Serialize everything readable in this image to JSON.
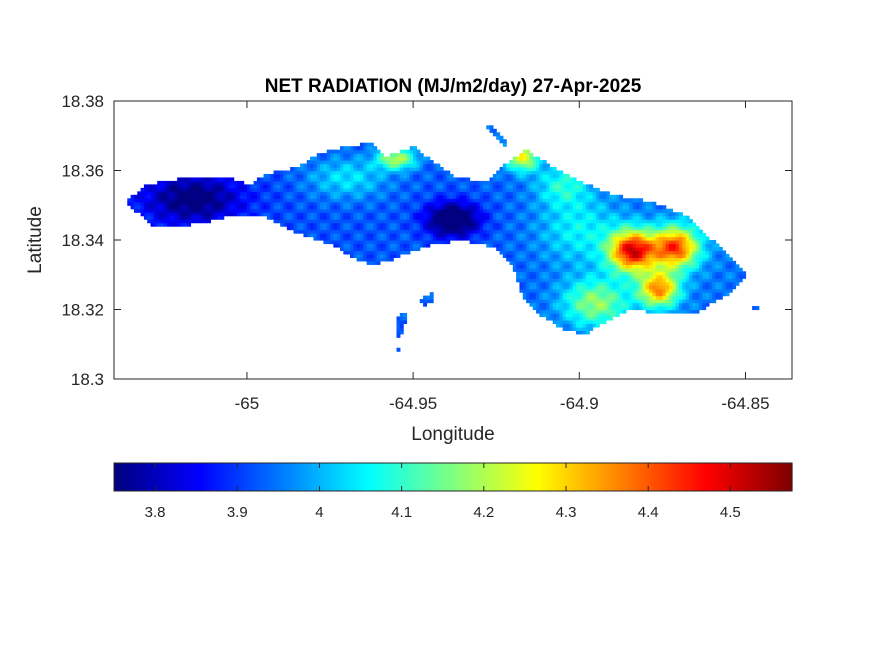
{
  "chart_data": {
    "type": "heatmap",
    "title": "NET RADIATION (MJ/m2/day) 27-Apr-2025",
    "xlabel": "Longitude",
    "ylabel": "Latitude",
    "xlim": [
      -65.04,
      -64.836
    ],
    "ylim": [
      18.3,
      18.38
    ],
    "xticks": [
      -65,
      -64.95,
      -64.9,
      -64.85
    ],
    "xtick_labels": [
      "-65",
      "-64.95",
      "-64.9",
      "-64.85"
    ],
    "yticks": [
      18.3,
      18.32,
      18.34,
      18.36,
      18.38
    ],
    "ytick_labels": [
      "18.3",
      "18.32",
      "18.34",
      "18.36",
      "18.38"
    ],
    "grid": false,
    "colormap": "jet",
    "colorbar": {
      "orientation": "horizontal",
      "placement": "bottom",
      "clim": [
        3.75,
        4.575
      ],
      "ticks": [
        3.8,
        3.9,
        4.0,
        4.1,
        4.2,
        4.3,
        4.4,
        4.5
      ],
      "tick_labels": [
        "3.8",
        "3.9",
        "4",
        "4.1",
        "4.2",
        "4.3",
        "4.4",
        "4.5"
      ]
    },
    "island_outline": [
      [
        -65.037,
        18.351
      ],
      [
        -65.03,
        18.356
      ],
      [
        -65.018,
        18.358
      ],
      [
        -65.005,
        18.358
      ],
      [
        -64.999,
        18.356
      ],
      [
        -64.994,
        18.359
      ],
      [
        -64.985,
        18.361
      ],
      [
        -64.978,
        18.365
      ],
      [
        -64.97,
        18.367
      ],
      [
        -64.962,
        18.368
      ],
      [
        -64.958,
        18.364
      ],
      [
        -64.95,
        18.367
      ],
      [
        -64.943,
        18.362
      ],
      [
        -64.937,
        18.358
      ],
      [
        -64.928,
        18.357
      ],
      [
        -64.922,
        18.362
      ],
      [
        -64.916,
        18.366
      ],
      [
        -64.908,
        18.361
      ],
      [
        -64.9,
        18.357
      ],
      [
        -64.89,
        18.353
      ],
      [
        -64.878,
        18.351
      ],
      [
        -64.868,
        18.347
      ],
      [
        -64.86,
        18.34
      ],
      [
        -64.852,
        18.333
      ],
      [
        -64.849,
        18.33
      ],
      [
        -64.856,
        18.324
      ],
      [
        -64.865,
        18.319
      ],
      [
        -64.875,
        18.319
      ],
      [
        -64.885,
        18.32
      ],
      [
        -64.893,
        18.316
      ],
      [
        -64.898,
        18.313
      ],
      [
        -64.904,
        18.314
      ],
      [
        -64.911,
        18.318
      ],
      [
        -64.917,
        18.324
      ],
      [
        -64.92,
        18.333
      ],
      [
        -64.925,
        18.338
      ],
      [
        -64.935,
        18.34
      ],
      [
        -64.943,
        18.339
      ],
      [
        -64.95,
        18.337
      ],
      [
        -64.957,
        18.334
      ],
      [
        -64.963,
        18.333
      ],
      [
        -64.968,
        18.335
      ],
      [
        -64.975,
        18.339
      ],
      [
        -64.985,
        18.342
      ],
      [
        -64.995,
        18.347
      ],
      [
        -65.005,
        18.347
      ],
      [
        -65.013,
        18.345
      ],
      [
        -65.022,
        18.344
      ],
      [
        -65.028,
        18.344
      ],
      [
        -65.033,
        18.348
      ]
    ],
    "islets": [
      [
        [
          -64.955,
          18.318
        ],
        [
          -64.952,
          18.319
        ],
        [
          -64.953,
          18.313
        ],
        [
          -64.955,
          18.312
        ]
      ],
      [
        [
          -64.948,
          18.323
        ],
        [
          -64.944,
          18.325
        ],
        [
          -64.944,
          18.322
        ],
        [
          -64.947,
          18.321
        ]
      ],
      [
        [
          -64.955,
          18.309
        ],
        [
          -64.954,
          18.309
        ],
        [
          -64.954,
          18.308
        ],
        [
          -64.955,
          18.308
        ]
      ],
      [
        [
          -64.928,
          18.3735
        ],
        [
          -64.924,
          18.371
        ],
        [
          -64.921,
          18.368
        ],
        [
          -64.922,
          18.367
        ],
        [
          -64.926,
          18.3705
        ],
        [
          -64.929,
          18.373
        ]
      ],
      [
        [
          -64.848,
          18.3215
        ],
        [
          -64.846,
          18.3215
        ],
        [
          -64.846,
          18.3205
        ],
        [
          -64.848,
          18.3205
        ]
      ]
    ],
    "field": {
      "base_value": 3.9,
      "west_to_east_gradient_per_degree": 0.27,
      "features": [
        {
          "lon": -64.884,
          "lat": 18.337,
          "amplitude": 0.55,
          "radius_lon": 0.007,
          "radius_lat": 0.006
        },
        {
          "lon": -64.871,
          "lat": 18.338,
          "amplitude": 0.48,
          "radius_lon": 0.007,
          "radius_lat": 0.006
        },
        {
          "lon": -64.876,
          "lat": 18.326,
          "amplitude": 0.42,
          "radius_lon": 0.006,
          "radius_lat": 0.005
        },
        {
          "lon": -64.895,
          "lat": 18.322,
          "amplitude": 0.24,
          "radius_lon": 0.01,
          "radius_lat": 0.007
        },
        {
          "lon": -64.917,
          "lat": 18.364,
          "amplitude": 0.32,
          "radius_lon": 0.005,
          "radius_lat": 0.004
        },
        {
          "lon": -64.955,
          "lat": 18.3635,
          "amplitude": 0.28,
          "radius_lon": 0.006,
          "radius_lat": 0.003
        },
        {
          "lon": -64.9,
          "lat": 18.343,
          "amplitude": 0.12,
          "radius_lon": 0.012,
          "radius_lat": 0.01
        },
        {
          "lon": -64.938,
          "lat": 18.346,
          "amplitude": -0.27,
          "radius_lon": 0.008,
          "radius_lat": 0.005
        },
        {
          "lon": -65.016,
          "lat": 18.352,
          "amplitude": -0.18,
          "radius_lon": 0.014,
          "radius_lat": 0.007
        },
        {
          "lon": -64.97,
          "lat": 18.358,
          "amplitude": 0.12,
          "radius_lon": 0.012,
          "radius_lat": 0.006
        },
        {
          "lon": -64.905,
          "lat": 18.356,
          "amplitude": 0.14,
          "radius_lon": 0.008,
          "radius_lat": 0.006
        }
      ]
    }
  },
  "colors": {
    "axes_box": "#262626",
    "title": "#000000",
    "background": "#ffffff"
  }
}
